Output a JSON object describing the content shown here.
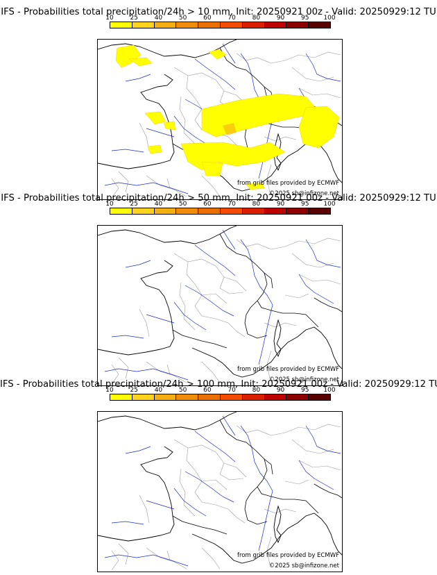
{
  "colorbar": {
    "ticks": [
      "10",
      "25",
      "40",
      "50",
      "60",
      "70",
      "80",
      "90",
      "95",
      "100"
    ],
    "colors": [
      "#ffff00",
      "#ffd21e",
      "#f5af14",
      "#f08c0a",
      "#eb6e00",
      "#f54b00",
      "#dc1e00",
      "#be0000",
      "#8c0000",
      "#5a0000"
    ]
  },
  "panels": [
    {
      "title": "IFS - Probabilities total precipitation/24h > 10 mm, Init: 20250921 00z - Valid: 20250929:12 TU",
      "has_precip": true
    },
    {
      "title": "IFS - Probabilities total precipitation/24h > 50 mm, Init: 20250921 00z - Valid: 20250929:12 TU",
      "has_precip": false
    },
    {
      "title": "IFS - Probabilities total precipitation/24h > 100 mm, Init: 20250921 00z - Valid: 20250929:12 TU",
      "has_precip": false
    }
  ],
  "credits": {
    "source": "from grib files provided by ECMWF",
    "copyright": "©2025 sb@infizone.net"
  },
  "map_colors": {
    "coast": "#000000",
    "border": "#000000",
    "regions": "#9a9a9a",
    "rivers": "#1a2bd0",
    "precip": "#ffff00",
    "precip_edge": "#f5af14"
  }
}
